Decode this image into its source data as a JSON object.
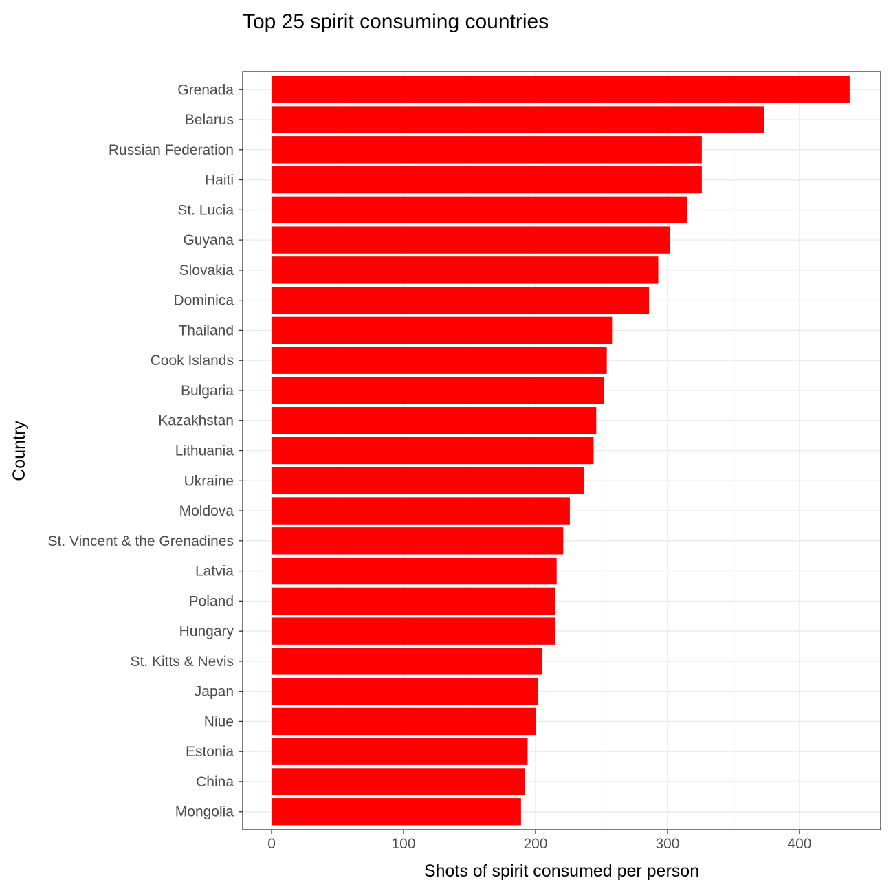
{
  "chart_data": {
    "type": "bar",
    "orientation": "horizontal",
    "title": "Top 25 spirit consuming countries",
    "xlabel": "Shots of spirit consumed per person",
    "ylabel": "Country",
    "xlim": [
      -21.9,
      461.5
    ],
    "xticks": [
      0,
      100,
      200,
      300,
      400
    ],
    "xtick_labels": [
      "0",
      "100",
      "200",
      "300",
      "400"
    ],
    "grid": true,
    "bar_color": "#FF0000",
    "categories": [
      "Grenada",
      "Belarus",
      "Russian Federation",
      "Haiti",
      "St. Lucia",
      "Guyana",
      "Slovakia",
      "Dominica",
      "Thailand",
      "Cook Islands",
      "Bulgaria",
      "Kazakhstan",
      "Lithuania",
      "Ukraine",
      "Moldova",
      "St. Vincent & the Grenadines",
      "Latvia",
      "Poland",
      "Hungary",
      "St. Kitts & Nevis",
      "Japan",
      "Niue",
      "Estonia",
      "China",
      "Mongolia"
    ],
    "values": [
      438,
      373,
      326,
      326,
      315,
      302,
      293,
      286,
      258,
      254,
      252,
      246,
      244,
      237,
      226,
      221,
      216,
      215,
      215,
      205,
      202,
      200,
      194,
      192,
      189
    ]
  }
}
